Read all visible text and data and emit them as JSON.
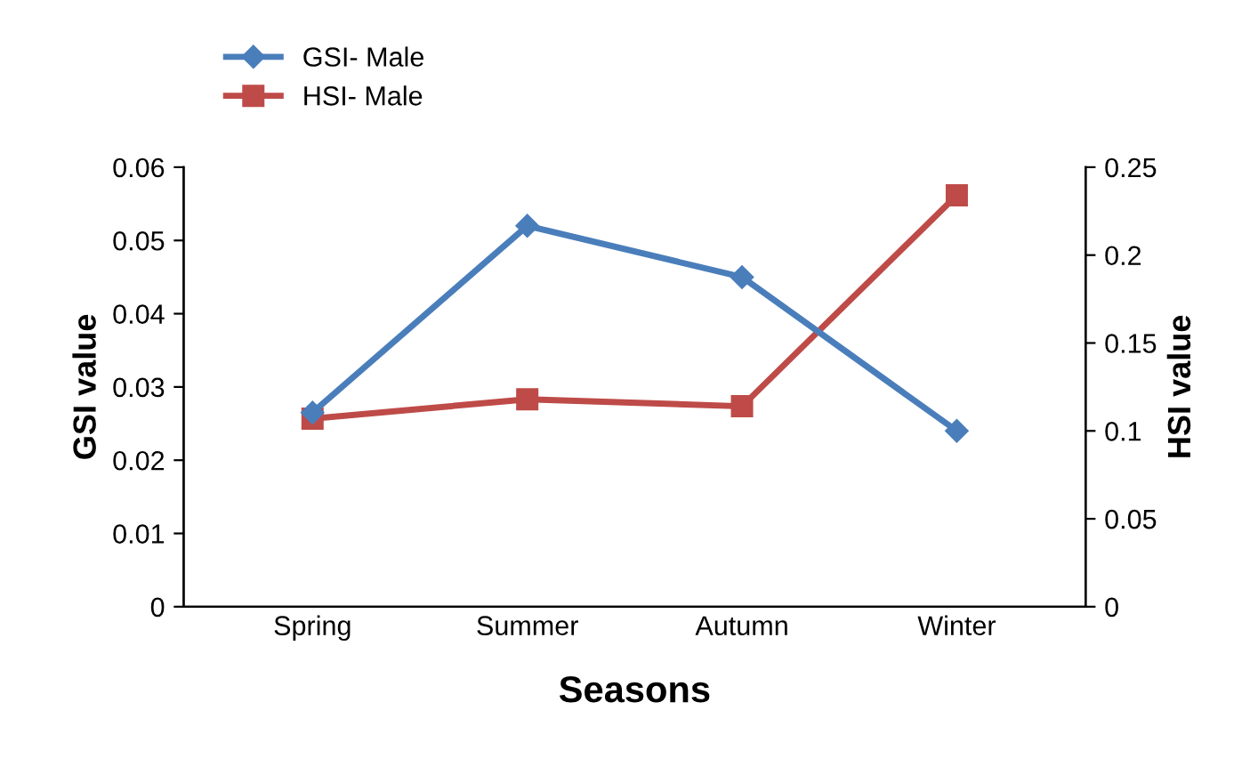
{
  "chart_data": {
    "type": "line",
    "xlabel": "Seasons",
    "ylabel": "GSI value",
    "y2label": "HSI value",
    "categories": [
      "Spring",
      "Summer",
      "Autumn",
      "Winter"
    ],
    "series": [
      {
        "name": "GSI- Male",
        "color": "#4a7ebb",
        "marker": "diamond",
        "values": [
          0.0265,
          0.052,
          0.045,
          0.024
        ]
      },
      {
        "name": "HSI- Male",
        "color": "#be4b48",
        "marker": "square",
        "axis": "y2",
        "values": [
          0.107,
          0.118,
          0.114,
          0.234
        ]
      }
    ],
    "ylim": [
      0,
      0.06
    ],
    "yticks": [
      0,
      0.01,
      0.02,
      0.03,
      0.04,
      0.05,
      0.06
    ],
    "y2lim": [
      0,
      0.25
    ],
    "y2ticks": [
      0,
      0.05,
      0.1,
      0.15,
      0.2,
      0.25
    ],
    "legend": "top left",
    "grid": false
  }
}
